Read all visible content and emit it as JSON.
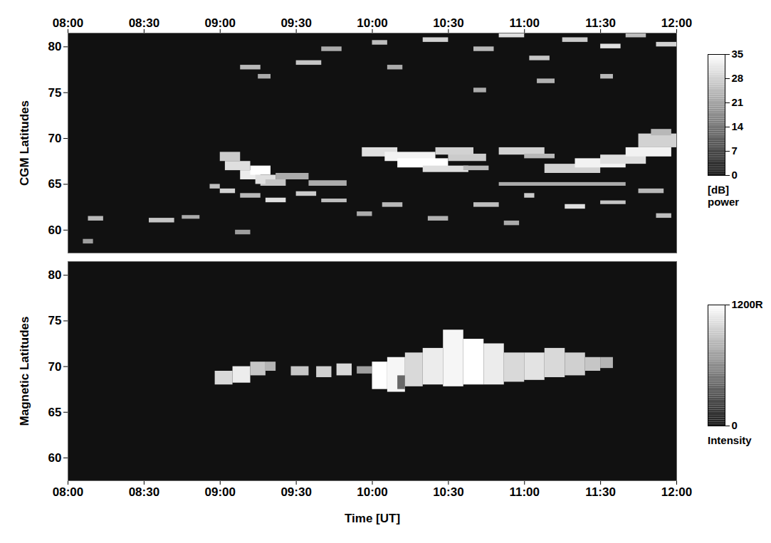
{
  "chart_data": [
    {
      "type": "heatmap",
      "y_label": "CGM Latitudes",
      "xlim": [
        480,
        720
      ],
      "xticks": [
        {
          "value": 480,
          "label": "08:00"
        },
        {
          "value": 510,
          "label": "08:30"
        },
        {
          "value": 540,
          "label": "09:00"
        },
        {
          "value": 570,
          "label": "09:30"
        },
        {
          "value": 600,
          "label": "10:00"
        },
        {
          "value": 630,
          "label": "10:30"
        },
        {
          "value": 660,
          "label": "11:00"
        },
        {
          "value": 690,
          "label": "11:30"
        },
        {
          "value": 720,
          "label": "12:00"
        }
      ],
      "ylim": [
        57.5,
        81.5
      ],
      "yticks": [
        60,
        65,
        70,
        75,
        80
      ],
      "cells": [
        {
          "x1": 488,
          "x2": 494,
          "y1": 61,
          "y2": 61.5,
          "v": 24
        },
        {
          "x1": 512,
          "x2": 522,
          "y1": 60.8,
          "y2": 61.3,
          "v": 26
        },
        {
          "x1": 525,
          "x2": 532,
          "y1": 61.2,
          "y2": 61.6,
          "v": 22
        },
        {
          "x1": 486,
          "x2": 490,
          "y1": 58.5,
          "y2": 59,
          "v": 20
        },
        {
          "x1": 536,
          "x2": 540,
          "y1": 64.5,
          "y2": 65,
          "v": 25
        },
        {
          "x1": 540,
          "x2": 546,
          "y1": 64,
          "y2": 64.5,
          "v": 28
        },
        {
          "x1": 548,
          "x2": 556,
          "y1": 63.5,
          "y2": 64,
          "v": 24
        },
        {
          "x1": 558,
          "x2": 566,
          "y1": 63,
          "y2": 63.5,
          "v": 30
        },
        {
          "x1": 556,
          "x2": 562,
          "y1": 64.8,
          "y2": 65.2,
          "v": 26
        },
        {
          "x1": 570,
          "x2": 578,
          "y1": 63.7,
          "y2": 64.2,
          "v": 27
        },
        {
          "x1": 580,
          "x2": 590,
          "y1": 63,
          "y2": 63.4,
          "v": 25
        },
        {
          "x1": 594,
          "x2": 600,
          "y1": 61.5,
          "y2": 62,
          "v": 22
        },
        {
          "x1": 604,
          "x2": 612,
          "y1": 62.5,
          "y2": 63,
          "v": 24
        },
        {
          "x1": 622,
          "x2": 630,
          "y1": 61,
          "y2": 61.5,
          "v": 23
        },
        {
          "x1": 640,
          "x2": 650,
          "y1": 62.5,
          "y2": 63,
          "v": 25
        },
        {
          "x1": 660,
          "x2": 664,
          "y1": 63.5,
          "y2": 64,
          "v": 27
        },
        {
          "x1": 676,
          "x2": 684,
          "y1": 62.3,
          "y2": 62.8,
          "v": 30
        },
        {
          "x1": 690,
          "x2": 700,
          "y1": 62.8,
          "y2": 63.2,
          "v": 26
        },
        {
          "x1": 705,
          "x2": 715,
          "y1": 64,
          "y2": 64.5,
          "v": 24
        },
        {
          "x1": 712,
          "x2": 718,
          "y1": 61.3,
          "y2": 61.8,
          "v": 25
        },
        {
          "x1": 652,
          "x2": 658,
          "y1": 60.5,
          "y2": 61,
          "v": 22
        },
        {
          "x1": 546,
          "x2": 552,
          "y1": 59.5,
          "y2": 60,
          "v": 20
        },
        {
          "x1": 540,
          "x2": 548,
          "y1": 67.5,
          "y2": 68.5,
          "v": 27
        },
        {
          "x1": 542,
          "x2": 552,
          "y1": 66.5,
          "y2": 67.5,
          "v": 30
        },
        {
          "x1": 548,
          "x2": 556,
          "y1": 65.5,
          "y2": 66.5,
          "v": 32
        },
        {
          "x1": 552,
          "x2": 560,
          "y1": 66,
          "y2": 67,
          "v": 35
        },
        {
          "x1": 554,
          "x2": 562,
          "y1": 65,
          "y2": 66,
          "v": 30
        },
        {
          "x1": 558,
          "x2": 566,
          "y1": 64.8,
          "y2": 65.5,
          "v": 26
        },
        {
          "x1": 562,
          "x2": 575,
          "y1": 65.5,
          "y2": 66.2,
          "v": 22
        },
        {
          "x1": 575,
          "x2": 590,
          "y1": 64.8,
          "y2": 65.4,
          "v": 22
        },
        {
          "x1": 596,
          "x2": 610,
          "y1": 68,
          "y2": 69,
          "v": 30
        },
        {
          "x1": 605,
          "x2": 625,
          "y1": 67.5,
          "y2": 68.5,
          "v": 33
        },
        {
          "x1": 610,
          "x2": 630,
          "y1": 66.8,
          "y2": 67.8,
          "v": 35
        },
        {
          "x1": 620,
          "x2": 638,
          "y1": 66.3,
          "y2": 67,
          "v": 30
        },
        {
          "x1": 630,
          "x2": 645,
          "y1": 67.5,
          "y2": 68.3,
          "v": 27
        },
        {
          "x1": 625,
          "x2": 640,
          "y1": 68.2,
          "y2": 69,
          "v": 28
        },
        {
          "x1": 636,
          "x2": 646,
          "y1": 66.5,
          "y2": 67,
          "v": 24
        },
        {
          "x1": 650,
          "x2": 668,
          "y1": 68.2,
          "y2": 69,
          "v": 28
        },
        {
          "x1": 660,
          "x2": 672,
          "y1": 67.8,
          "y2": 68.3,
          "v": 24
        },
        {
          "x1": 668,
          "x2": 690,
          "y1": 66.2,
          "y2": 67.2,
          "v": 28
        },
        {
          "x1": 680,
          "x2": 700,
          "y1": 66.8,
          "y2": 67.8,
          "v": 33
        },
        {
          "x1": 690,
          "x2": 708,
          "y1": 67.2,
          "y2": 68.2,
          "v": 30
        },
        {
          "x1": 700,
          "x2": 718,
          "y1": 68,
          "y2": 69,
          "v": 33
        },
        {
          "x1": 705,
          "x2": 720,
          "y1": 69,
          "y2": 70.5,
          "v": 28
        },
        {
          "x1": 710,
          "x2": 718,
          "y1": 70.3,
          "y2": 71,
          "v": 24
        },
        {
          "x1": 650,
          "x2": 700,
          "y1": 64.8,
          "y2": 65.2,
          "v": 22
        },
        {
          "x1": 548,
          "x2": 556,
          "y1": 77.5,
          "y2": 78,
          "v": 24
        },
        {
          "x1": 555,
          "x2": 560,
          "y1": 76.5,
          "y2": 77,
          "v": 22
        },
        {
          "x1": 570,
          "x2": 580,
          "y1": 78,
          "y2": 78.5,
          "v": 26
        },
        {
          "x1": 580,
          "x2": 588,
          "y1": 79.5,
          "y2": 80,
          "v": 22
        },
        {
          "x1": 600,
          "x2": 606,
          "y1": 80.2,
          "y2": 80.7,
          "v": 25
        },
        {
          "x1": 620,
          "x2": 630,
          "y1": 80.5,
          "y2": 81,
          "v": 28
        },
        {
          "x1": 640,
          "x2": 648,
          "y1": 79.5,
          "y2": 80,
          "v": 24
        },
        {
          "x1": 650,
          "x2": 660,
          "y1": 81,
          "y2": 81.5,
          "v": 30
        },
        {
          "x1": 662,
          "x2": 670,
          "y1": 78.5,
          "y2": 79,
          "v": 26
        },
        {
          "x1": 675,
          "x2": 685,
          "y1": 80.5,
          "y2": 81,
          "v": 27
        },
        {
          "x1": 690,
          "x2": 698,
          "y1": 79.8,
          "y2": 80.3,
          "v": 30
        },
        {
          "x1": 700,
          "x2": 708,
          "y1": 81,
          "y2": 81.5,
          "v": 25
        },
        {
          "x1": 712,
          "x2": 720,
          "y1": 80,
          "y2": 80.5,
          "v": 28
        },
        {
          "x1": 640,
          "x2": 645,
          "y1": 75,
          "y2": 75.5,
          "v": 22
        },
        {
          "x1": 665,
          "x2": 672,
          "y1": 76,
          "y2": 76.5,
          "v": 23
        },
        {
          "x1": 690,
          "x2": 695,
          "y1": 76.5,
          "y2": 77,
          "v": 24
        },
        {
          "x1": 606,
          "x2": 612,
          "y1": 77.5,
          "y2": 78,
          "v": 22
        }
      ],
      "colorbar": {
        "range": [
          0,
          35
        ],
        "ticks": [
          0,
          7,
          14,
          21,
          28,
          35
        ],
        "label": [
          "[dB]",
          "power"
        ]
      }
    },
    {
      "type": "heatmap",
      "y_label": "Magnetic Latitudes",
      "x_label": "Time [UT]",
      "xlim": [
        480,
        720
      ],
      "xticks": [
        {
          "value": 480,
          "label": "08:00"
        },
        {
          "value": 510,
          "label": "08:30"
        },
        {
          "value": 540,
          "label": "09:00"
        },
        {
          "value": 570,
          "label": "09:30"
        },
        {
          "value": 600,
          "label": "10:00"
        },
        {
          "value": 630,
          "label": "10:30"
        },
        {
          "value": 660,
          "label": "11:00"
        },
        {
          "value": 690,
          "label": "11:30"
        },
        {
          "value": 720,
          "label": "12:00"
        }
      ],
      "ylim": [
        57.5,
        81.5
      ],
      "yticks": [
        60,
        65,
        70,
        75,
        80
      ],
      "cells": [
        {
          "x1": 538,
          "x2": 545,
          "y1": 68,
          "y2": 69.5,
          "v": 1000
        },
        {
          "x1": 545,
          "x2": 552,
          "y1": 68.2,
          "y2": 70,
          "v": 1100
        },
        {
          "x1": 552,
          "x2": 558,
          "y1": 69,
          "y2": 70.5,
          "v": 900
        },
        {
          "x1": 558,
          "x2": 562,
          "y1": 69.5,
          "y2": 70.5,
          "v": 800
        },
        {
          "x1": 568,
          "x2": 575,
          "y1": 69,
          "y2": 70,
          "v": 900
        },
        {
          "x1": 578,
          "x2": 584,
          "y1": 68.8,
          "y2": 70,
          "v": 950
        },
        {
          "x1": 586,
          "x2": 592,
          "y1": 69,
          "y2": 70.3,
          "v": 1000
        },
        {
          "x1": 594,
          "x2": 600,
          "y1": 69.2,
          "y2": 70,
          "v": 700
        },
        {
          "x1": 600,
          "x2": 606,
          "y1": 67.5,
          "y2": 70.5,
          "v": 1200
        },
        {
          "x1": 606,
          "x2": 613,
          "y1": 67.2,
          "y2": 71,
          "v": 1150
        },
        {
          "x1": 613,
          "x2": 620,
          "y1": 67.8,
          "y2": 71.5,
          "v": 1000
        },
        {
          "x1": 620,
          "x2": 628,
          "y1": 68,
          "y2": 72,
          "v": 1100
        },
        {
          "x1": 628,
          "x2": 636,
          "y1": 67.8,
          "y2": 74,
          "v": 1150
        },
        {
          "x1": 636,
          "x2": 644,
          "y1": 68,
          "y2": 73,
          "v": 1200
        },
        {
          "x1": 644,
          "x2": 652,
          "y1": 68,
          "y2": 72.5,
          "v": 1100
        },
        {
          "x1": 652,
          "x2": 660,
          "y1": 68.3,
          "y2": 71.5,
          "v": 1000
        },
        {
          "x1": 660,
          "x2": 668,
          "y1": 68.5,
          "y2": 71.5,
          "v": 1050
        },
        {
          "x1": 668,
          "x2": 676,
          "y1": 68.8,
          "y2": 72,
          "v": 1000
        },
        {
          "x1": 676,
          "x2": 684,
          "y1": 69,
          "y2": 71.5,
          "v": 950
        },
        {
          "x1": 684,
          "x2": 690,
          "y1": 69.5,
          "y2": 71,
          "v": 900
        },
        {
          "x1": 690,
          "x2": 695,
          "y1": 69.8,
          "y2": 71,
          "v": 800
        },
        {
          "x1": 610,
          "x2": 613,
          "y1": 67.5,
          "y2": 69,
          "v": 400
        }
      ],
      "colorbar": {
        "range": [
          0,
          1200
        ],
        "ticks": [
          0,
          {
            "value": 1200,
            "label": "1200R"
          }
        ],
        "label": [
          "Intensity"
        ]
      }
    }
  ]
}
